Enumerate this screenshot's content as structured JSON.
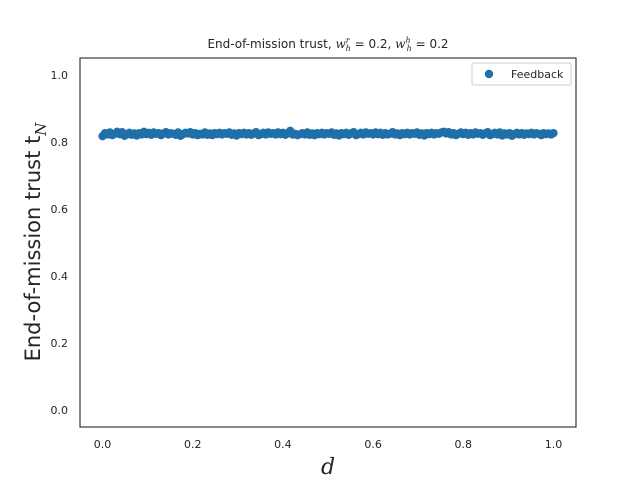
{
  "chart_data": {
    "type": "scatter",
    "title_parts": [
      "End-of-mission trust, ",
      "w",
      "r",
      "h",
      " = 0.2, ",
      "w",
      "h",
      "h",
      " = 0.2"
    ],
    "xlabel": "d",
    "ylabel": "End-of-mission trust t",
    "ylabel_sub": "N",
    "xlim": [
      -0.05,
      1.05
    ],
    "ylim": [
      -0.05,
      1.05
    ],
    "xticks": [
      "0.0",
      "0.2",
      "0.4",
      "0.6",
      "0.8",
      "1.0"
    ],
    "yticks": [
      "0.0",
      "0.2",
      "0.4",
      "0.6",
      "0.8",
      "1.0"
    ],
    "grid": false,
    "legend_position": "top-right",
    "series": [
      {
        "name": "Feedback",
        "color": "#1f6fa8",
        "x_start": 0.0,
        "x_end": 1.0,
        "y": [
          0.817,
          0.826,
          0.822,
          0.828,
          0.82,
          0.824,
          0.83,
          0.823,
          0.829,
          0.818,
          0.822,
          0.827,
          0.821,
          0.825,
          0.819,
          0.826,
          0.822,
          0.83,
          0.823,
          0.827,
          0.821,
          0.828,
          0.824,
          0.826,
          0.82,
          0.825,
          0.829,
          0.822,
          0.826,
          0.824,
          0.821,
          0.828,
          0.818,
          0.823,
          0.827,
          0.825,
          0.829,
          0.822,
          0.826,
          0.82,
          0.824,
          0.822,
          0.828,
          0.821,
          0.825,
          0.82,
          0.826,
          0.823,
          0.827,
          0.822,
          0.826,
          0.824,
          0.828,
          0.821,
          0.825,
          0.819,
          0.826,
          0.823,
          0.827,
          0.822,
          0.826,
          0.821,
          0.825,
          0.829,
          0.82,
          0.823,
          0.827,
          0.822,
          0.828,
          0.824,
          0.826,
          0.822,
          0.828,
          0.823,
          0.827,
          0.821,
          0.826,
          0.833,
          0.822,
          0.824,
          0.82,
          0.823,
          0.826,
          0.822,
          0.828,
          0.821,
          0.825,
          0.82,
          0.826,
          0.823,
          0.827,
          0.822,
          0.826,
          0.824,
          0.828,
          0.821,
          0.825,
          0.819,
          0.826,
          0.823,
          0.827,
          0.821,
          0.825,
          0.829,
          0.82,
          0.823,
          0.827,
          0.822,
          0.828,
          0.824,
          0.826,
          0.822,
          0.828,
          0.823,
          0.827,
          0.821,
          0.826,
          0.822,
          0.824,
          0.829,
          0.822,
          0.825,
          0.82,
          0.826,
          0.823,
          0.827,
          0.822,
          0.826,
          0.824,
          0.828,
          0.821,
          0.825,
          0.819,
          0.826,
          0.823,
          0.827,
          0.822,
          0.826,
          0.824,
          0.828,
          0.83,
          0.825,
          0.829,
          0.822,
          0.826,
          0.82,
          0.824,
          0.828,
          0.823,
          0.827,
          0.821,
          0.826,
          0.822,
          0.828,
          0.824,
          0.826,
          0.821,
          0.825,
          0.829,
          0.82,
          0.823,
          0.827,
          0.822,
          0.828,
          0.819,
          0.825,
          0.822,
          0.826,
          0.818,
          0.823,
          0.827,
          0.822,
          0.826,
          0.821,
          0.825,
          0.823,
          0.827,
          0.822,
          0.826,
          0.824,
          0.82,
          0.826,
          0.823,
          0.825,
          0.822,
          0.826
        ]
      }
    ]
  }
}
